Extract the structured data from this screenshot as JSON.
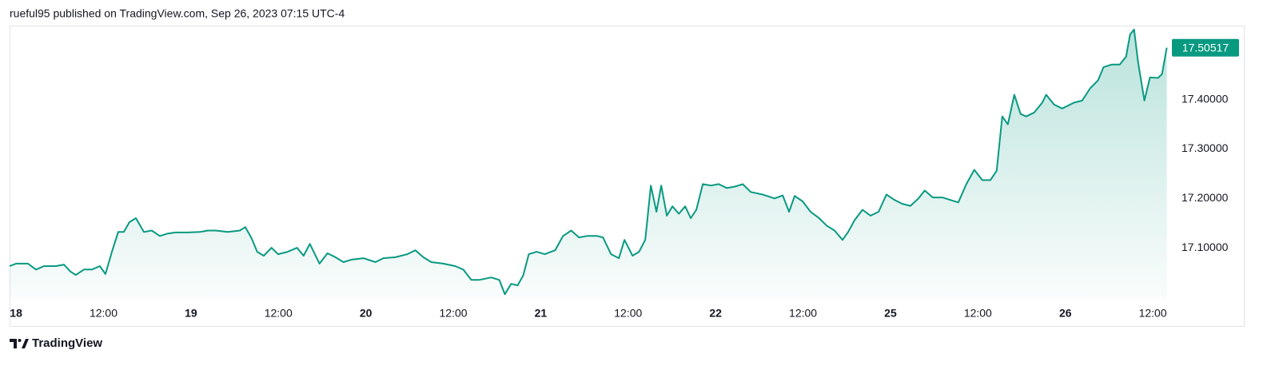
{
  "chart_data": {
    "type": "line",
    "attribution": "rueful95 published on TradingView.com, Sep 26, 2023 07:15 UTC-4",
    "source": "TradingView",
    "grid": false,
    "color": "#089981",
    "x": [
      -0.037,
      0,
      0.068,
      0.114,
      0.16,
      0.228,
      0.274,
      0.311,
      0.342,
      0.388,
      0.434,
      0.479,
      0.511,
      0.548,
      0.584,
      0.616,
      0.648,
      0.685,
      0.731,
      0.776,
      0.822,
      0.868,
      0.913,
      0.982,
      1.05,
      1.096,
      1.142,
      1.21,
      1.279,
      1.311,
      1.347,
      1.379,
      1.416,
      1.461,
      1.498,
      1.553,
      1.607,
      1.644,
      1.68,
      1.735,
      1.781,
      1.826,
      1.872,
      1.918,
      1.986,
      2.055,
      2.1,
      2.169,
      2.237,
      2.283,
      2.329,
      2.374,
      2.443,
      2.511,
      2.557,
      2.603,
      2.648,
      2.717,
      2.763,
      2.795,
      2.831,
      2.868,
      2.9,
      2.932,
      2.977,
      3.023,
      3.082,
      3.128,
      3.174,
      3.219,
      3.265,
      3.324,
      3.356,
      3.402,
      3.447,
      3.479,
      3.525,
      3.562,
      3.598,
      3.63,
      3.662,
      3.689,
      3.721,
      3.753,
      3.79,
      3.826,
      3.858,
      3.89,
      3.927,
      3.973,
      4.018,
      4.064,
      4.11,
      4.155,
      4.201,
      4.269,
      4.338,
      4.384,
      4.42,
      4.452,
      4.498,
      4.543,
      4.589,
      4.635,
      4.68,
      4.726,
      4.758,
      4.795,
      4.84,
      4.886,
      4.932,
      4.977,
      5.023,
      5.068,
      5.114,
      5.16,
      5.196,
      5.242,
      5.297,
      5.342,
      5.388,
      5.434,
      5.479,
      5.525,
      5.571,
      5.607,
      5.639,
      5.671,
      5.708,
      5.744,
      5.776,
      5.822,
      5.868,
      5.89,
      5.936,
      5.982,
      6.05,
      6.096,
      6.142,
      6.187,
      6.219,
      6.265,
      6.311,
      6.347,
      6.37,
      6.393,
      6.416,
      6.452,
      6.484,
      6.53,
      6.553,
      6.58
    ],
    "series": [
      {
        "color": "#089981",
        "values": [
          17.063,
          17.068,
          17.068,
          17.056,
          17.063,
          17.063,
          17.066,
          17.052,
          17.045,
          17.056,
          17.056,
          17.063,
          17.047,
          17.092,
          17.132,
          17.132,
          17.152,
          17.16,
          17.132,
          17.135,
          17.124,
          17.129,
          17.131,
          17.131,
          17.132,
          17.135,
          17.135,
          17.132,
          17.135,
          17.142,
          17.119,
          17.092,
          17.084,
          17.1,
          17.087,
          17.092,
          17.1,
          17.084,
          17.108,
          17.068,
          17.089,
          17.081,
          17.071,
          17.076,
          17.079,
          17.071,
          17.079,
          17.081,
          17.087,
          17.095,
          17.081,
          17.071,
          17.068,
          17.063,
          17.056,
          17.035,
          17.035,
          17.04,
          17.035,
          17.006,
          17.027,
          17.024,
          17.044,
          17.087,
          17.092,
          17.087,
          17.095,
          17.124,
          17.135,
          17.121,
          17.124,
          17.124,
          17.121,
          17.087,
          17.079,
          17.116,
          17.084,
          17.092,
          17.116,
          17.226,
          17.173,
          17.226,
          17.165,
          17.184,
          17.169,
          17.184,
          17.16,
          17.177,
          17.229,
          17.226,
          17.229,
          17.221,
          17.224,
          17.229,
          17.213,
          17.208,
          17.2,
          17.206,
          17.173,
          17.205,
          17.194,
          17.173,
          17.161,
          17.145,
          17.135,
          17.116,
          17.132,
          17.156,
          17.177,
          17.165,
          17.173,
          17.208,
          17.197,
          17.189,
          17.185,
          17.2,
          17.216,
          17.202,
          17.202,
          17.197,
          17.192,
          17.229,
          17.258,
          17.237,
          17.237,
          17.256,
          17.366,
          17.35,
          17.41,
          17.371,
          17.366,
          17.374,
          17.394,
          17.41,
          17.39,
          17.382,
          17.394,
          17.398,
          17.423,
          17.439,
          17.466,
          17.471,
          17.471,
          17.487,
          17.532,
          17.542,
          17.476,
          17.398,
          17.445,
          17.444,
          17.452,
          17.50517
        ]
      }
    ],
    "xlim": [
      -0.037,
      6.6
    ],
    "xticks": [
      {
        "value": 0,
        "label": "18"
      },
      {
        "value": 0.5,
        "label": "12:00"
      },
      {
        "value": 1,
        "label": "19"
      },
      {
        "value": 1.5,
        "label": "12:00"
      },
      {
        "value": 2,
        "label": "20"
      },
      {
        "value": 2.5,
        "label": "12:00"
      },
      {
        "value": 3,
        "label": "21"
      },
      {
        "value": 3.5,
        "label": "12:00"
      },
      {
        "value": 4,
        "label": "22"
      },
      {
        "value": 4.5,
        "label": "12:00"
      },
      {
        "value": 5,
        "label": "25"
      },
      {
        "value": 5.5,
        "label": "12:00"
      },
      {
        "value": 6,
        "label": "26"
      },
      {
        "value": 6.5,
        "label": "12:00"
      }
    ],
    "ylim": [
      16.995,
      17.55
    ],
    "yticks": [
      {
        "value": 17.1,
        "label": "17.10000"
      },
      {
        "value": 17.2,
        "label": "17.20000"
      },
      {
        "value": 17.3,
        "label": "17.30000"
      },
      {
        "value": 17.4,
        "label": "17.40000"
      }
    ]
  }
}
